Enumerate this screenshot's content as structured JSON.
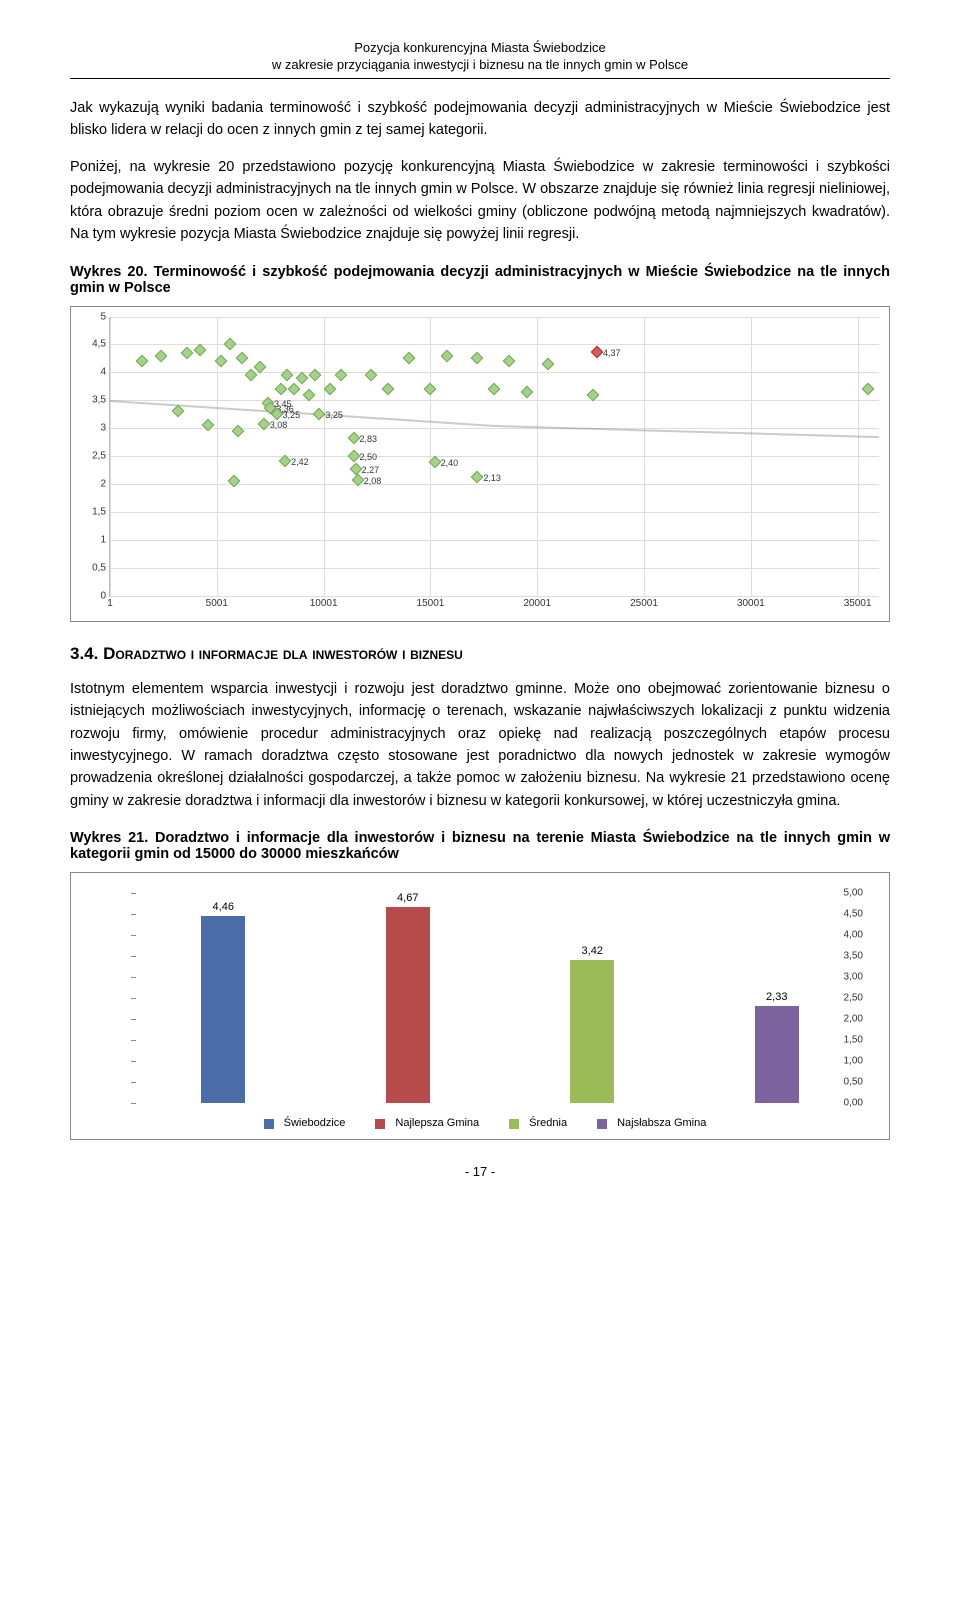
{
  "header": {
    "line1": "Pozycja konkurencyjna Miasta Świebodzice",
    "line2": "w zakresie przyciągania inwestycji i biznesu na tle innych gmin w Polsce"
  },
  "para1": "Jak wykazują wyniki badania terminowość i szybkość podejmowania decyzji administracyjnych w Mieście Świebodzice jest blisko lidera w relacji do ocen z innych gmin z tej samej kategorii.",
  "para2": "Poniżej, na wykresie 20 przedstawiono pozycję konkurencyjną Miasta Świebodzice w zakresie terminowości i szybkości podejmowania decyzji administracyjnych na tle innych gmin w Polsce. W obszarze znajduje się również linia regresji nieliniowej, która obrazuje średni poziom ocen w zależności od wielkości gminy (obliczone podwójną metodą najmniejszych kwadratów). Na tym wykresie pozycja Miasta Świebodzice znajduje się powyżej linii regresji.",
  "scatter": {
    "title": "Wykres 20. Terminowość i szybkość podejmowania decyzji administracyjnych w Mieście Świebodzice na tle innych gmin w Polsce",
    "xlim": [
      1,
      36000
    ],
    "ylim": [
      0,
      5
    ],
    "xticks": [
      1,
      5001,
      10001,
      15001,
      20001,
      25001,
      30001,
      35001
    ],
    "yticks": [
      0,
      0.5,
      1,
      1.5,
      2,
      2.5,
      3,
      3.5,
      4,
      4.5,
      5
    ],
    "ytick_labels": [
      "0",
      "0,5",
      "1",
      "1,5",
      "2",
      "2,5",
      "3",
      "3,5",
      "4",
      "4,5",
      "5"
    ],
    "grid_color": "#dddddd",
    "point_color": "#a7d08e",
    "highlight_color": "#d85a5a",
    "highlight": {
      "x": 22800,
      "y": 4.37,
      "label": "4,37"
    },
    "regression": [
      {
        "x": 1,
        "y": 3.5
      },
      {
        "x": 8000,
        "y": 3.3
      },
      {
        "x": 18000,
        "y": 3.05
      },
      {
        "x": 36000,
        "y": 2.85
      }
    ],
    "labeled": [
      {
        "x": 7400,
        "y": 3.45,
        "label": "3,45"
      },
      {
        "x": 7500,
        "y": 3.36,
        "label": "3,36"
      },
      {
        "x": 7800,
        "y": 3.25,
        "label": "3,25"
      },
      {
        "x": 7200,
        "y": 3.08,
        "label": "3,08"
      },
      {
        "x": 9800,
        "y": 3.25,
        "label": "3,25"
      },
      {
        "x": 11400,
        "y": 2.83,
        "label": "2,83"
      },
      {
        "x": 8200,
        "y": 2.42,
        "label": "2,42"
      },
      {
        "x": 11400,
        "y": 2.5,
        "label": "2,50"
      },
      {
        "x": 11500,
        "y": 2.27,
        "label": "2,27"
      },
      {
        "x": 11600,
        "y": 2.08,
        "label": "2,08"
      },
      {
        "x": 15200,
        "y": 2.4,
        "label": "2,40"
      },
      {
        "x": 17200,
        "y": 2.13,
        "label": "2,13"
      }
    ],
    "points": [
      {
        "x": 1500,
        "y": 4.2
      },
      {
        "x": 2400,
        "y": 4.3
      },
      {
        "x": 3200,
        "y": 3.3
      },
      {
        "x": 3600,
        "y": 4.35
      },
      {
        "x": 4200,
        "y": 4.4
      },
      {
        "x": 4600,
        "y": 3.05
      },
      {
        "x": 5200,
        "y": 4.2
      },
      {
        "x": 5600,
        "y": 4.5
      },
      {
        "x": 5800,
        "y": 2.05
      },
      {
        "x": 6000,
        "y": 2.95
      },
      {
        "x": 6200,
        "y": 4.25
      },
      {
        "x": 6600,
        "y": 3.95
      },
      {
        "x": 7000,
        "y": 4.1
      },
      {
        "x": 8000,
        "y": 3.7
      },
      {
        "x": 8300,
        "y": 3.95
      },
      {
        "x": 8600,
        "y": 3.7
      },
      {
        "x": 9000,
        "y": 3.9
      },
      {
        "x": 9300,
        "y": 3.6
      },
      {
        "x": 9600,
        "y": 3.95
      },
      {
        "x": 10300,
        "y": 3.7
      },
      {
        "x": 10800,
        "y": 3.95
      },
      {
        "x": 12200,
        "y": 3.95
      },
      {
        "x": 13000,
        "y": 3.7
      },
      {
        "x": 14000,
        "y": 4.25
      },
      {
        "x": 15000,
        "y": 3.7
      },
      {
        "x": 15800,
        "y": 4.3
      },
      {
        "x": 17200,
        "y": 4.25
      },
      {
        "x": 18000,
        "y": 3.7
      },
      {
        "x": 18700,
        "y": 4.2
      },
      {
        "x": 19500,
        "y": 3.65
      },
      {
        "x": 20500,
        "y": 4.15
      },
      {
        "x": 22600,
        "y": 3.6
      },
      {
        "x": 35500,
        "y": 3.7
      }
    ]
  },
  "section": {
    "num": "3.4.",
    "title": "Doradztwo i informacje dla inwestorów i biznesu"
  },
  "para3": "Istotnym elementem wsparcia inwestycji i rozwoju jest doradztwo gminne. Może ono obejmować zorientowanie biznesu o istniejących możliwościach inwestycyjnych, informację o terenach, wskazanie najwłaściwszych lokalizacji z punktu widzenia rozwoju firmy, omówienie procedur administracyjnych oraz opiekę nad realizacją poszczególnych etapów procesu inwestycyjnego. W ramach doradztwa często stosowane jest poradnictwo dla nowych jednostek w zakresie wymogów prowadzenia określonej działalności gospodarczej, a także pomoc w założeniu biznesu. Na wykresie 21 przedstawiono ocenę gminy w zakresie doradztwa i informacji dla inwestorów i biznesu w kategorii konkursowej, w której uczestniczyła gmina.",
  "bar": {
    "title": "Wykres 21. Doradztwo i informacje dla inwestorów i biznesu na terenie Miasta Świebodzice na tle innych gmin w kategorii gmin od 15000 do 30000 mieszkańców",
    "ylim": [
      0,
      5
    ],
    "ytick_step": 0.5,
    "ytick_labels": [
      "0,00",
      "0,50",
      "1,00",
      "1,50",
      "2,00",
      "2,50",
      "3,00",
      "3,50",
      "4,00",
      "4,50",
      "5,00"
    ],
    "series": [
      {
        "name": "Świebodzice",
        "value": 4.46,
        "label": "4,46",
        "color": "#4a6da8"
      },
      {
        "name": "Najlepsza Gmina",
        "value": 4.67,
        "label": "4,67",
        "color": "#b84b4b"
      },
      {
        "name": "Średnia",
        "value": 3.42,
        "label": "3,42",
        "color": "#9bbb59"
      },
      {
        "name": "Najsłabsza Gmina",
        "value": 2.33,
        "label": "2,33",
        "color": "#7c639e"
      }
    ]
  },
  "footer": "- 17 -"
}
